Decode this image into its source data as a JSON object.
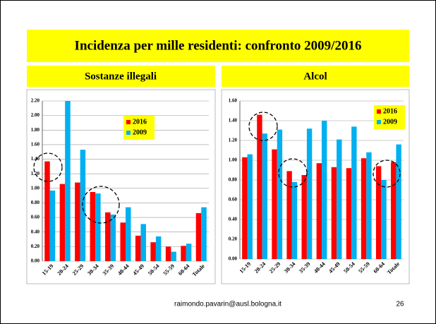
{
  "title": "Incidenza per mille residenti: confronto 2009/2016",
  "footer": "raimondo.pavarin@ausl.bologna.it",
  "page_number": "26",
  "chart_data": [
    {
      "type": "bar",
      "title": "Sostanze illegali",
      "categories": [
        "15-19",
        "20-24",
        "25-29",
        "30-34",
        "35-39",
        "40-44",
        "45-49",
        "50-54",
        "55-59",
        "60-64",
        "Totale"
      ],
      "series": [
        {
          "name": "2016",
          "color": "#ff0000",
          "values": [
            1.37,
            1.06,
            1.08,
            0.95,
            0.67,
            0.53,
            0.35,
            0.26,
            0.2,
            0.21,
            0.66
          ]
        },
        {
          "name": "2009",
          "color": "#00b0f0",
          "values": [
            0.97,
            2.2,
            1.53,
            0.93,
            0.64,
            0.74,
            0.51,
            0.34,
            0.13,
            0.24,
            0.74
          ]
        }
      ],
      "ylim": [
        0,
        2.2
      ],
      "yticks": [
        {
          "value": 0,
          "label": "0.00"
        },
        {
          "value": 0.2,
          "label": "0.20"
        },
        {
          "value": 0.4,
          "label": "0.40"
        },
        {
          "value": 0.6,
          "label": "0.60"
        },
        {
          "value": 0.8,
          "label": "0.80"
        },
        {
          "value": 1.0,
          "label": "1.00"
        },
        {
          "value": 1.2,
          "label": "1.20"
        },
        {
          "value": 1.4,
          "label": "1.40"
        },
        {
          "value": 1.6,
          "label": "1.60"
        },
        {
          "value": 1.8,
          "label": "1.80"
        },
        {
          "value": 2.0,
          "label": "2.00"
        },
        {
          "value": 2.2,
          "label": "2.20"
        }
      ],
      "grid": true
    },
    {
      "type": "bar",
      "title": "Alcol",
      "categories": [
        "15-19",
        "20-24",
        "25-29",
        "30-34",
        "35-39",
        "40-44",
        "45-49",
        "50-54",
        "55-59",
        "60-64",
        "Totale"
      ],
      "series": [
        {
          "name": "2016",
          "color": "#ff0000",
          "values": [
            1.03,
            1.46,
            1.11,
            0.89,
            0.85,
            0.97,
            0.93,
            0.92,
            1.02,
            0.94,
            0.98
          ]
        },
        {
          "name": "2009",
          "color": "#00b0f0",
          "values": [
            1.06,
            1.27,
            1.31,
            0.78,
            1.32,
            1.4,
            1.21,
            1.34,
            1.08,
            0.8,
            1.16
          ]
        }
      ],
      "ylim": [
        0,
        1.6
      ],
      "yticks": [
        {
          "value": 0,
          "label": "0.00"
        },
        {
          "value": 0.2,
          "label": "0.20"
        },
        {
          "value": 0.4,
          "label": "0.40"
        },
        {
          "value": 0.6,
          "label": "0.60"
        },
        {
          "value": 0.8,
          "label": "0.80"
        },
        {
          "value": 1.0,
          "label": "1.00"
        },
        {
          "value": 1.2,
          "label": "1.20"
        },
        {
          "value": 1.4,
          "label": "1.40"
        },
        {
          "value": 1.6,
          "label": "1.60"
        }
      ],
      "grid": true
    }
  ]
}
